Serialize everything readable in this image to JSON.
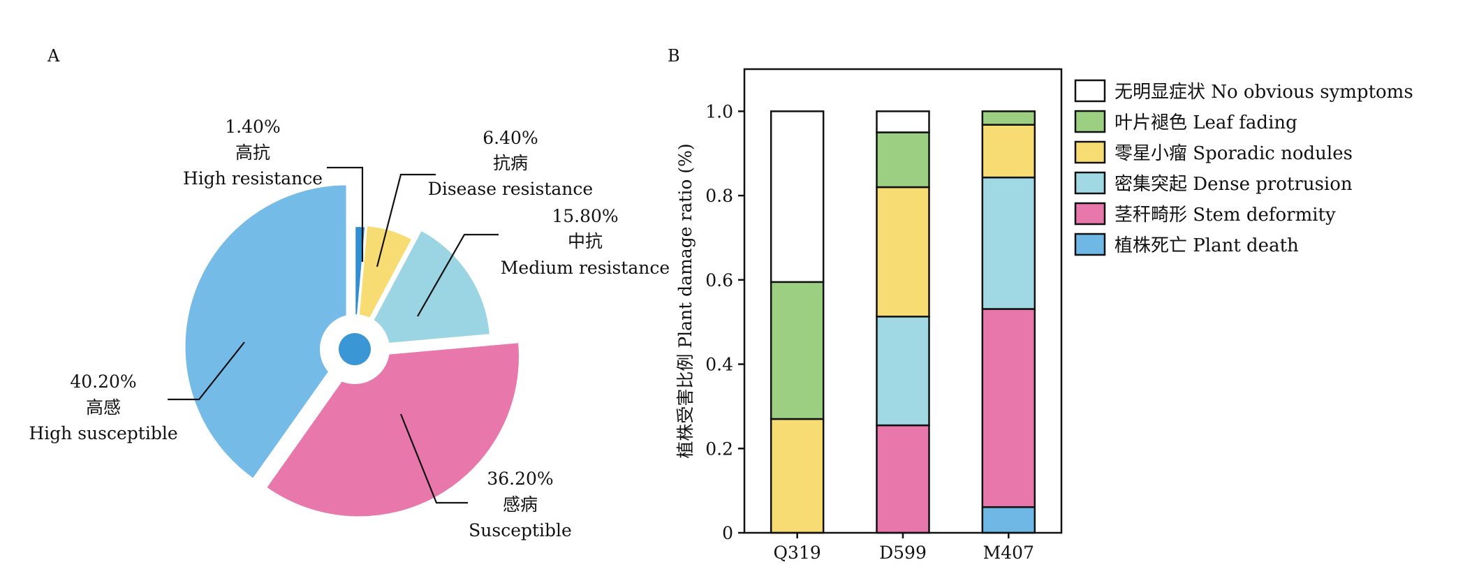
{
  "chart_data": [
    {
      "type": "pie",
      "panel_label": "A",
      "slices": [
        {
          "percent_label": "1.40%",
          "zh": "高抗",
          "en": "High resistance",
          "value": 1.4,
          "color": "#2f8fd0"
        },
        {
          "percent_label": "6.40%",
          "zh": "抗病",
          "en": "Disease resistance",
          "value": 6.4,
          "color": "#f6dc72"
        },
        {
          "percent_label": "15.80%",
          "zh": "中抗",
          "en": "Medium resistance",
          "value": 15.8,
          "color": "#9bd4e2"
        },
        {
          "percent_label": "36.20%",
          "zh": "感病",
          "en": "Susceptible",
          "value": 36.2,
          "color": "#e878ab"
        },
        {
          "percent_label": "40.20%",
          "zh": "高感",
          "en": "High susceptible",
          "value": 40.2,
          "color": "#75bbe8"
        }
      ],
      "center_hole_color": "#3a96d4"
    },
    {
      "type": "bar",
      "stacked": true,
      "panel_label": "B",
      "ylabel": "植株受害比例 Plant damage ratio (%)",
      "xlabel": "",
      "ylim": [
        0,
        1.1
      ],
      "yticks": [
        "0",
        "0.2",
        "0.4",
        "0.6",
        "0.8",
        "1.0"
      ],
      "categories": [
        "Q319",
        "D599",
        "M407"
      ],
      "legend_position": "right",
      "series": [
        {
          "name": "植株死亡 Plant death",
          "color": "#6fb8e6",
          "values": [
            0.0,
            0.0,
            0.061
          ]
        },
        {
          "name": "茎秆畸形 Stem deformity",
          "color": "#e878ab",
          "values": [
            0.0,
            0.255,
            0.47
          ]
        },
        {
          "name": "密集突起 Dense protrusion",
          "color": "#a0d8e3",
          "values": [
            0.0,
            0.258,
            0.312
          ]
        },
        {
          "name": "零星小瘤 Sporadic nodules",
          "color": "#f6dc72",
          "values": [
            0.27,
            0.307,
            0.125
          ]
        },
        {
          "name": "叶片褪色 Leaf fading",
          "color": "#9ccf82",
          "values": [
            0.325,
            0.13,
            0.032
          ]
        },
        {
          "name": "无明显症状 No obvious symptoms",
          "color": "#ffffff",
          "values": [
            0.405,
            0.05,
            0.0
          ]
        }
      ],
      "legend_order": [
        5,
        4,
        3,
        2,
        1,
        0
      ]
    }
  ]
}
